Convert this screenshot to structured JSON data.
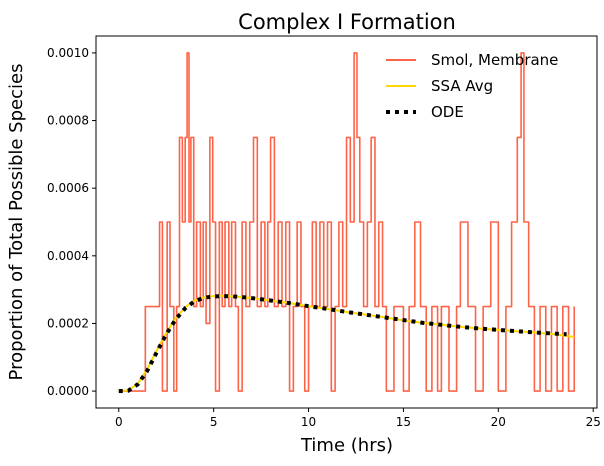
{
  "chart_data": {
    "type": "line",
    "title": "Complex I Formation",
    "xlabel": "Time (hrs)",
    "ylabel": "Proportion of Total Possible Species",
    "xlim": [
      -1.2,
      25.2
    ],
    "ylim": [
      -5e-05,
      0.00105
    ],
    "x_ticks": [
      0,
      5,
      10,
      15,
      20,
      25
    ],
    "x_tick_labels": [
      "0",
      "5",
      "10",
      "15",
      "20",
      "25"
    ],
    "y_ticks": [
      0,
      0.0002,
      0.0004,
      0.0006,
      0.0008,
      0.001
    ],
    "y_tick_labels": [
      "0.0000",
      "0.0002",
      "0.0004",
      "0.0006",
      "0.0008",
      "0.0010"
    ],
    "grid": false,
    "legend_position": "top-right",
    "series": [
      {
        "name": "Smol, Membrane",
        "color": "#ff6347",
        "step": true,
        "x": [
          0,
          1.4,
          1.9,
          2.15,
          2.3,
          2.55,
          2.7,
          2.9,
          3.05,
          3.2,
          3.35,
          3.5,
          3.6,
          3.7,
          3.8,
          3.95,
          4.1,
          4.3,
          4.45,
          4.6,
          4.8,
          4.95,
          5.1,
          5.3,
          5.45,
          5.6,
          5.8,
          5.95,
          6.15,
          6.3,
          6.5,
          6.7,
          6.9,
          7.1,
          7.3,
          7.5,
          7.7,
          7.85,
          8.0,
          8.2,
          8.4,
          8.6,
          8.8,
          9.0,
          9.2,
          9.4,
          9.6,
          9.8,
          10.0,
          10.2,
          10.4,
          10.6,
          10.8,
          11.0,
          11.2,
          11.4,
          11.6,
          11.8,
          12.0,
          12.2,
          12.4,
          12.55,
          12.7,
          12.9,
          13.1,
          13.3,
          13.5,
          13.7,
          13.9,
          14.1,
          14.5,
          15.0,
          15.3,
          15.6,
          15.9,
          16.2,
          16.5,
          16.8,
          17.0,
          17.4,
          17.8,
          18.0,
          18.4,
          18.8,
          19.2,
          19.6,
          20.0,
          20.4,
          20.7,
          21.0,
          21.2,
          21.35,
          21.6,
          21.9,
          22.2,
          22.5,
          22.8,
          23.1,
          23.4,
          23.7,
          24.0
        ],
        "y": [
          0,
          0.00025,
          0.00025,
          0.0005,
          0,
          0.0005,
          0.00025,
          0,
          0.00025,
          0.00075,
          0.0005,
          0.00075,
          0.001,
          0.0005,
          0.00075,
          0.00025,
          0.0005,
          0.00025,
          0.0005,
          0.0002,
          0.00075,
          0.0005,
          0,
          0.0005,
          0.00025,
          0.0005,
          0.00025,
          0.0005,
          0.00025,
          0,
          0.0005,
          0.00025,
          0.0005,
          0.00075,
          0.00025,
          0.0005,
          0.00025,
          0.0005,
          0.00075,
          0.00025,
          0.0005,
          0.00025,
          0.0005,
          0,
          0.00025,
          0.0005,
          0.00025,
          0,
          0.00025,
          0.0005,
          0.00025,
          0.0005,
          0.00025,
          0.0005,
          0,
          0.00025,
          0.0005,
          0.00025,
          0.00075,
          0.0005,
          0.001,
          0.00075,
          0.0005,
          0.00025,
          0.0005,
          0.00075,
          0.00025,
          0.0005,
          0.00025,
          0,
          0.00025,
          0,
          0.00025,
          0.0005,
          0.00025,
          0,
          0.00025,
          0,
          0.00025,
          0,
          0.00025,
          0.0005,
          0.00025,
          0,
          0.00025,
          0.0005,
          0,
          0.00025,
          0.0005,
          0.00075,
          0.001,
          0.0005,
          0.00025,
          0,
          0.00025,
          0,
          0.00025,
          0,
          0.00025,
          0,
          0.00025
        ]
      },
      {
        "name": "SSA Avg",
        "color": "#ffd700",
        "x": [
          0,
          0.5,
          1,
          1.5,
          2,
          2.5,
          3,
          3.5,
          4,
          4.5,
          5,
          5.5,
          6,
          6.5,
          7,
          8,
          9,
          10,
          11,
          12,
          13,
          14,
          15,
          16,
          17,
          18,
          19,
          20,
          21,
          22,
          23,
          24
        ],
        "y": [
          0,
          2e-06,
          2.2e-05,
          6.5e-05,
          0.00012,
          0.000172,
          0.000216,
          0.000248,
          0.000268,
          0.000277,
          0.000281,
          0.000282,
          0.00028,
          0.000278,
          0.000275,
          0.000268,
          0.00026,
          0.000251,
          0.000243,
          0.000234,
          0.000226,
          0.000218,
          0.000209,
          0.000202,
          0.000196,
          0.00019,
          0.000185,
          0.000181,
          0.000177,
          0.000173,
          0.000168,
          0.00016
        ]
      },
      {
        "name": "ODE",
        "color": "#000000",
        "style": "dotted",
        "x": [
          0,
          0.5,
          1,
          1.5,
          2,
          2.5,
          3,
          3.5,
          4,
          4.5,
          5,
          5.5,
          6,
          6.5,
          7,
          8,
          9,
          10,
          11,
          12,
          13,
          14,
          15,
          16,
          17,
          18,
          19,
          20,
          21,
          22,
          23,
          23.6
        ],
        "y": [
          0,
          1e-06,
          2e-05,
          6e-05,
          0.000115,
          0.000168,
          0.000212,
          0.000245,
          0.000266,
          0.000276,
          0.00028,
          0.000281,
          0.00028,
          0.000278,
          0.000275,
          0.000268,
          0.00026,
          0.000251,
          0.000243,
          0.000234,
          0.000226,
          0.000218,
          0.00021,
          0.000202,
          0.000196,
          0.00019,
          0.000185,
          0.000181,
          0.000177,
          0.000173,
          0.00017,
          0.000168
        ]
      }
    ]
  }
}
